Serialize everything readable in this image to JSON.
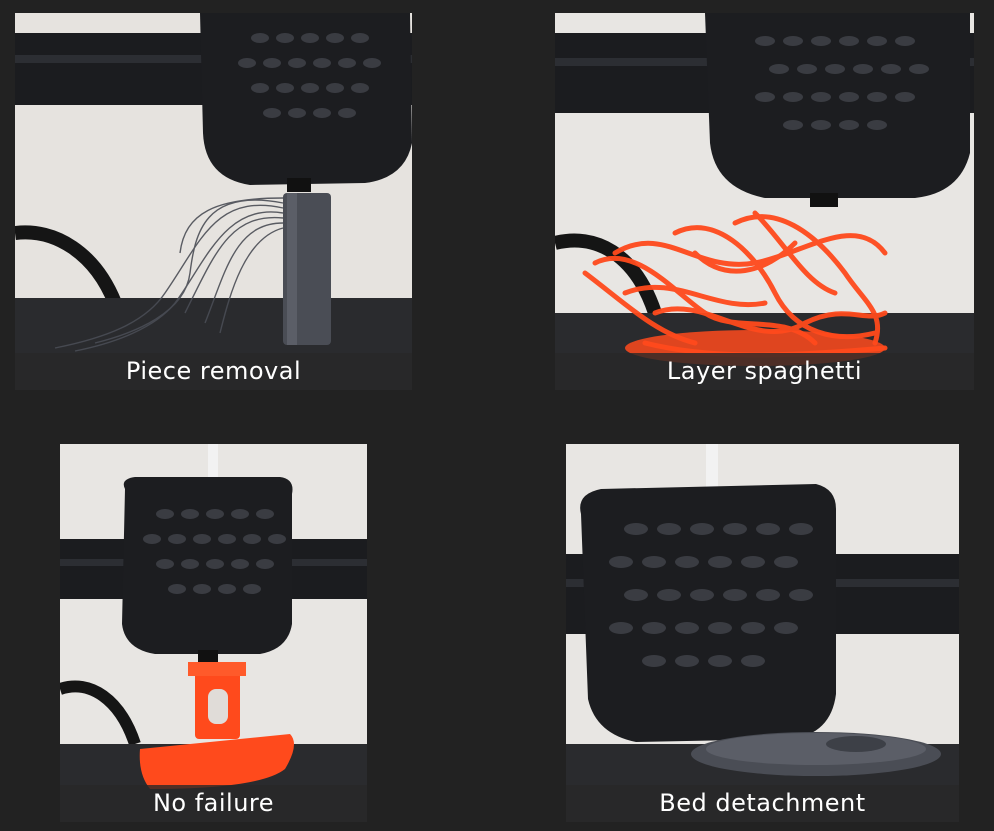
{
  "panels": [
    {
      "id": "p1",
      "caption": "Piece removal"
    },
    {
      "id": "p2",
      "caption": "Layer spaghetti"
    },
    {
      "id": "p3",
      "caption": "No failure"
    },
    {
      "id": "p4",
      "caption": "Bed detachment"
    }
  ],
  "colors": {
    "background": "#222222",
    "printer_body": "#1c1d20",
    "filament_orange": "#ff4a1c",
    "filament_grey": "#4a4d55",
    "wall": "#e9e7e4"
  }
}
